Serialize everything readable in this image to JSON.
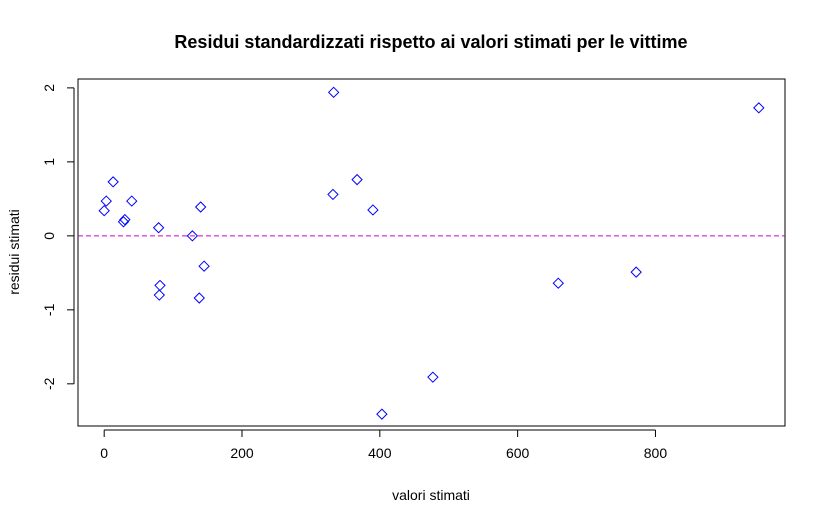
{
  "chart_data": {
    "type": "scatter",
    "title": "Residui standardizzati rispetto ai valori stimati per le vittime",
    "xlabel": "valori stimati",
    "ylabel": "residui stimati",
    "xlim": [
      -38,
      988
    ],
    "ylim": [
      -2.57,
      2.12
    ],
    "xticks": [
      0,
      200,
      400,
      600,
      800
    ],
    "yticks": [
      -2,
      -1,
      0,
      1,
      2
    ],
    "x_tick_labels": [
      "0",
      "200",
      "400",
      "600",
      "800"
    ],
    "y_tick_labels": [
      "-2",
      "-1",
      "0",
      "1",
      "2"
    ],
    "grid": false,
    "marker": "diamond",
    "point_color": "#0000ff",
    "reference_line": {
      "y": 0,
      "style": "dashed",
      "color": "#cc00cc"
    },
    "series": [
      {
        "points": [
          {
            "x": 0,
            "y": 0.34
          },
          {
            "x": 3,
            "y": 0.47
          },
          {
            "x": 13,
            "y": 0.73
          },
          {
            "x": 28,
            "y": 0.19
          },
          {
            "x": 30,
            "y": 0.22
          },
          {
            "x": 40,
            "y": 0.47
          },
          {
            "x": 79,
            "y": 0.11
          },
          {
            "x": 81,
            "y": -0.67
          },
          {
            "x": 80,
            "y": -0.8
          },
          {
            "x": 128,
            "y": 0.0
          },
          {
            "x": 138,
            "y": -0.84
          },
          {
            "x": 140,
            "y": 0.39
          },
          {
            "x": 145,
            "y": -0.41
          },
          {
            "x": 333,
            "y": 1.94
          },
          {
            "x": 332,
            "y": 0.56
          },
          {
            "x": 367,
            "y": 0.76
          },
          {
            "x": 390,
            "y": 0.35
          },
          {
            "x": 403,
            "y": -2.41
          },
          {
            "x": 477,
            "y": -1.91
          },
          {
            "x": 659,
            "y": -0.64
          },
          {
            "x": 772,
            "y": -0.49
          },
          {
            "x": 950,
            "y": 1.73
          }
        ]
      }
    ]
  }
}
